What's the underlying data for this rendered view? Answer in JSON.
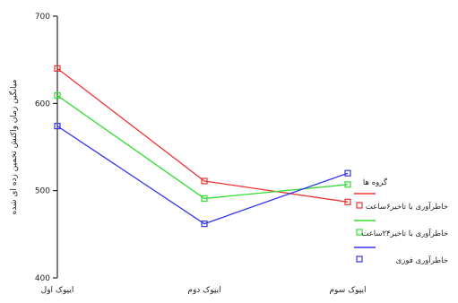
{
  "chart_data": {
    "type": "line",
    "categories": [
      "ایپوک اول",
      "ایپوک دوم",
      "ایپوک سوم"
    ],
    "ylabel": "میانگین زمان واکنش تخمین زده ای شده",
    "ylim": [
      400,
      700
    ],
    "yticks": [
      400,
      500,
      600,
      700
    ],
    "grid": false,
    "legend_title": "گروه ها",
    "legend_position": "right",
    "series": [
      {
        "name": "خاطرآوری با تاخیر۶ساعت",
        "color": "#ee3333",
        "values": [
          640,
          511,
          487
        ]
      },
      {
        "name": "خاطرآوری با تاخیر۲۴ساعت",
        "color": "#33dd33",
        "values": [
          609,
          491,
          507
        ]
      },
      {
        "name": "خاطرآوری فوری",
        "color": "#3333ee",
        "values": [
          574,
          462,
          520
        ]
      }
    ]
  }
}
